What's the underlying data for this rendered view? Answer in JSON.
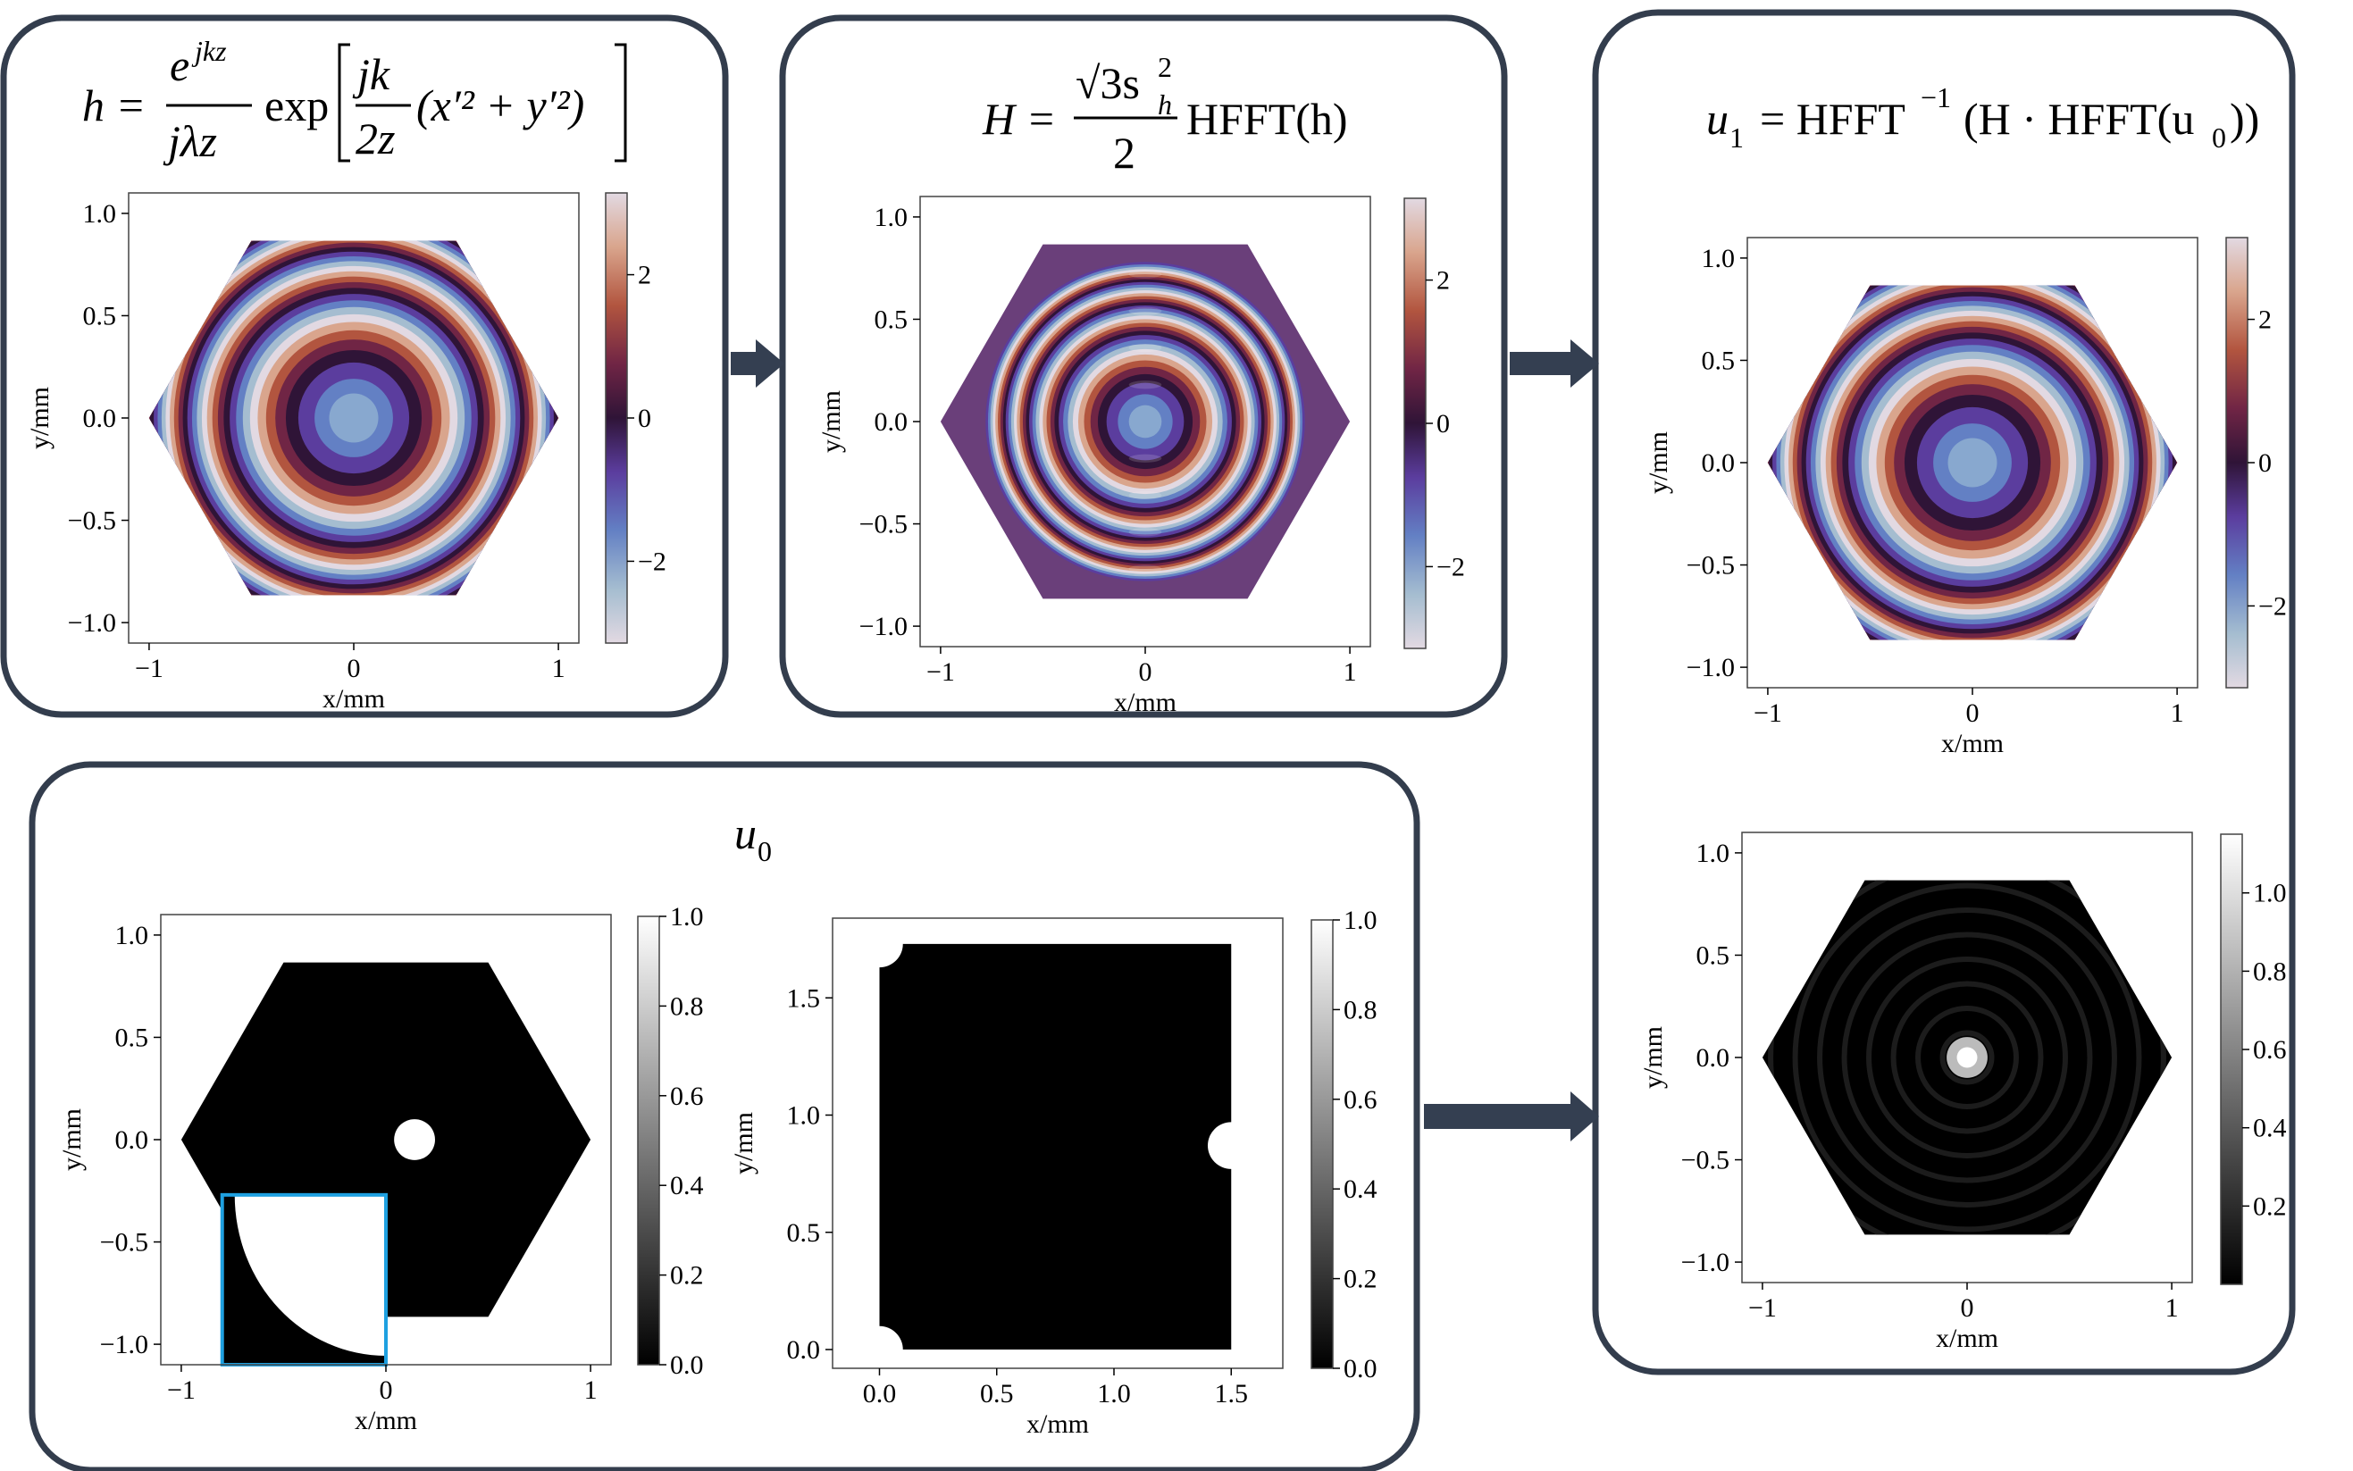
{
  "axis_labels": {
    "x": "x/mm",
    "y": "y/mm"
  },
  "colors": {
    "panel_border": "#333d4d",
    "arrow": "#343f51",
    "inset_border": "#1ea0e0",
    "plot_bg": "#ffffff"
  },
  "equations": {
    "h": "h = e^{jkz} / (jλz) exp[ jk/(2z) (x'^2 + y'^2) ]",
    "H": "H = (√3 s_h^2 / 2) HFFT(h)",
    "u1": "u_1 = HFFT^{-1}(H · HFFT(u_0))",
    "u0": "u_0"
  },
  "equation_parts": {
    "h_lhs": "h =",
    "h_num": "e",
    "h_num_sup": "jkz",
    "h_den": "jλz",
    "h_exp": "exp",
    "h_inner_num": "jk",
    "h_inner_den": "2z",
    "h_inner_rest": "(x′² + y′²)",
    "H_lhs": "H =",
    "H_num": "√3s",
    "H_num_sub": "h",
    "H_num_sup": "2",
    "H_den": "2",
    "H_rhs": "HFFT(h)",
    "u1_lhs": "u",
    "u1_sub": "1",
    "u1_eq": "= HFFT",
    "u1_sup": "−1",
    "u1_rest_a": "(H · HFFT(u",
    "u1_rest_sub": "0",
    "u1_rest_b": "))",
    "u0_main": "u",
    "u0_sub": "0"
  },
  "plots": [
    {
      "id": "p-h",
      "colormap": "twilight",
      "pattern": "rings",
      "ring_k": 6.0,
      "xticks": [
        "−1",
        "0",
        "1"
      ],
      "yticks": [
        "1.0",
        "0.5",
        "0.0",
        "−0.5",
        "−1.0"
      ],
      "cbar_ticks": [
        "2",
        "0",
        "−2"
      ]
    },
    {
      "id": "p-H",
      "colormap": "twilight",
      "pattern": "aliased",
      "ring_k": 6.0,
      "xticks": [
        "−1",
        "0",
        "1"
      ],
      "yticks": [
        "1.0",
        "0.5",
        "0.0",
        "−0.5",
        "−1.0"
      ],
      "cbar_ticks": [
        "2",
        "0",
        "−2"
      ]
    },
    {
      "id": "p-u1-phase",
      "colormap": "twilight",
      "pattern": "rings-edge",
      "ring_k": 5.0,
      "xticks": [
        "−1",
        "0",
        "1"
      ],
      "yticks": [
        "1.0",
        "0.5",
        "0.0",
        "−0.5",
        "−1.0"
      ],
      "cbar_ticks": [
        "2",
        "0",
        "−2"
      ]
    },
    {
      "id": "p-u1-amp",
      "colormap": "gray",
      "pattern": "spot",
      "xticks": [
        "−1",
        "0",
        "1"
      ],
      "yticks": [
        "1.0",
        "0.5",
        "0.0",
        "−0.5",
        "−1.0"
      ],
      "cbar_ticks": [
        "1.0",
        "0.8",
        "0.6",
        "0.4",
        "0.2"
      ]
    },
    {
      "id": "p-u0-hex",
      "colormap": "gray",
      "pattern": "aperture",
      "xticks": [
        "−1",
        "0",
        "1"
      ],
      "yticks": [
        "1.0",
        "0.5",
        "0.0",
        "−0.5",
        "−1.0"
      ],
      "cbar_ticks": [
        "1.0",
        "0.8",
        "0.6",
        "0.4",
        "0.2",
        "0.0"
      ]
    },
    {
      "id": "p-u0-rect",
      "colormap": "gray",
      "pattern": "rect",
      "xticks": [
        "0.0",
        "0.5",
        "1.0",
        "1.5"
      ],
      "yticks": [
        "1.5",
        "1.0",
        "0.5",
        "0.0"
      ],
      "cbar_ticks": [
        "1.0",
        "0.8",
        "0.6",
        "0.4",
        "0.2",
        "0.0"
      ]
    }
  ]
}
